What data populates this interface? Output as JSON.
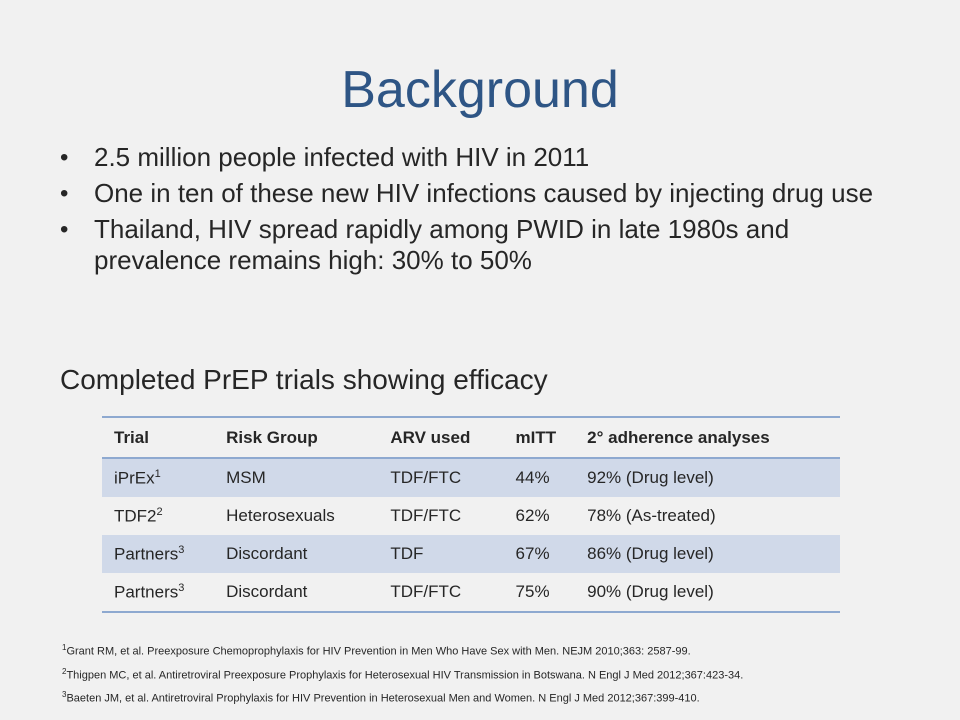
{
  "slide": {
    "title": "Background",
    "bullets": [
      "2.5 million people infected with HIV in 2011",
      "One in ten of these new HIV infections caused by injecting drug use",
      "Thailand, HIV spread rapidly among PWID in late 1980s and prevalence remains high: 30% to 50%"
    ],
    "subheading": "Completed PrEP trials showing efficacy"
  },
  "table": {
    "headers": [
      "Trial",
      "Risk Group",
      "ARV used",
      "mITT",
      "2° adherence analyses"
    ],
    "rows": [
      {
        "trial": "iPrEx",
        "sup": "1",
        "risk_group": "MSM",
        "arv": "TDF/FTC",
        "mitt": "44%",
        "adherence": "92% (Drug level)"
      },
      {
        "trial": "TDF2",
        "sup": "2",
        "risk_group": "Heterosexuals",
        "arv": "TDF/FTC",
        "mitt": "62%",
        "adherence": "78% (As-treated)"
      },
      {
        "trial": "Partners",
        "sup": "3",
        "risk_group": "Discordant",
        "arv": "TDF",
        "mitt": "67%",
        "adherence": "86% (Drug level)"
      },
      {
        "trial": "Partners",
        "sup": "3",
        "risk_group": "Discordant",
        "arv": "TDF/FTC",
        "mitt": "75%",
        "adherence": "90% (Drug level)"
      }
    ]
  },
  "references": [
    {
      "sup": "1",
      "text": "Grant RM, et al. Preexposure Chemoprophylaxis for HIV Prevention in Men Who Have Sex with Men. NEJM 2010;363:  2587-99."
    },
    {
      "sup": "2",
      "text": "Thigpen MC, et al. Antiretroviral Preexposure Prophylaxis for Heterosexual HIV Transmission in Botswana. N Engl J Med 2012;367:423-34."
    },
    {
      "sup": "3",
      "text": "Baeten JM, et al. Antiretroviral Prophylaxis for HIV Prevention in Heterosexual Men and Women. N Engl J Med 2012;367:399-410."
    }
  ],
  "theme": {
    "title_color": "#2e5585",
    "row_band_color": "#d0d9e9",
    "rule_color": "#8ea9d0"
  }
}
